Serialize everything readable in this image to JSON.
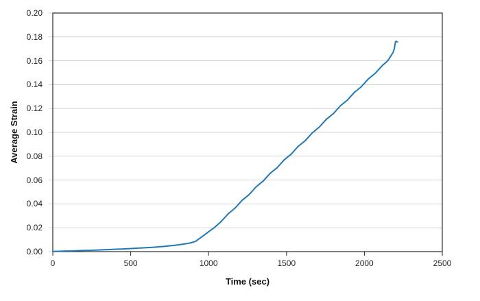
{
  "chart_data": {
    "type": "line",
    "title": "",
    "xlabel": "Time (sec)",
    "ylabel": "Average Strain",
    "xlim": [
      0,
      2500
    ],
    "ylim": [
      0,
      0.2
    ],
    "grid": "horizontal",
    "legend": "none",
    "x_ticks": [
      {
        "value": 0,
        "label": "0"
      },
      {
        "value": 500,
        "label": "500"
      },
      {
        "value": 1000,
        "label": "1000"
      },
      {
        "value": 1500,
        "label": "1500"
      },
      {
        "value": 2000,
        "label": "2000"
      },
      {
        "value": 2500,
        "label": "2500"
      }
    ],
    "y_ticks": [
      {
        "value": 0.0,
        "label": "0.00"
      },
      {
        "value": 0.02,
        "label": "0.02"
      },
      {
        "value": 0.04,
        "label": "0.04"
      },
      {
        "value": 0.06,
        "label": "0.06"
      },
      {
        "value": 0.08,
        "label": "0.08"
      },
      {
        "value": 0.1,
        "label": "0.10"
      },
      {
        "value": 0.12,
        "label": "0.12"
      },
      {
        "value": 0.14,
        "label": "0.14"
      },
      {
        "value": 0.16,
        "label": "0.16"
      },
      {
        "value": 0.18,
        "label": "0.18"
      },
      {
        "value": 0.2,
        "label": "0.20"
      }
    ],
    "series": [
      {
        "name": "Average Strain",
        "color": "#1F77B4",
        "points": [
          [
            0,
            0.0002
          ],
          [
            40,
            0.0003
          ],
          [
            80,
            0.0005
          ],
          [
            120,
            0.0006
          ],
          [
            160,
            0.0008
          ],
          [
            200,
            0.001
          ],
          [
            240,
            0.0011
          ],
          [
            280,
            0.0013
          ],
          [
            320,
            0.0015
          ],
          [
            360,
            0.0017
          ],
          [
            400,
            0.002
          ],
          [
            440,
            0.0022
          ],
          [
            480,
            0.0024
          ],
          [
            520,
            0.0027
          ],
          [
            560,
            0.003
          ],
          [
            600,
            0.0033
          ],
          [
            640,
            0.0036
          ],
          [
            680,
            0.004
          ],
          [
            720,
            0.0045
          ],
          [
            760,
            0.005
          ],
          [
            800,
            0.0056
          ],
          [
            840,
            0.0063
          ],
          [
            880,
            0.0072
          ],
          [
            915,
            0.0085
          ],
          [
            945,
            0.0113
          ],
          [
            975,
            0.0142
          ],
          [
            1005,
            0.0171
          ],
          [
            1035,
            0.02
          ],
          [
            1080,
            0.0252
          ],
          [
            1125,
            0.0316
          ],
          [
            1170,
            0.0365
          ],
          [
            1215,
            0.043
          ],
          [
            1260,
            0.0478
          ],
          [
            1305,
            0.0543
          ],
          [
            1350,
            0.0591
          ],
          [
            1395,
            0.0656
          ],
          [
            1440,
            0.0704
          ],
          [
            1485,
            0.0769
          ],
          [
            1530,
            0.0817
          ],
          [
            1575,
            0.0882
          ],
          [
            1620,
            0.093
          ],
          [
            1665,
            0.0995
          ],
          [
            1710,
            0.1043
          ],
          [
            1755,
            0.1108
          ],
          [
            1800,
            0.1156
          ],
          [
            1845,
            0.1221
          ],
          [
            1890,
            0.1269
          ],
          [
            1935,
            0.1334
          ],
          [
            1980,
            0.1382
          ],
          [
            2025,
            0.1447
          ],
          [
            2070,
            0.1495
          ],
          [
            2115,
            0.156
          ],
          [
            2150,
            0.16
          ],
          [
            2172,
            0.1645
          ],
          [
            2185,
            0.1672
          ],
          [
            2192,
            0.17
          ],
          [
            2196,
            0.173
          ],
          [
            2199,
            0.1758
          ],
          [
            2204,
            0.1763
          ],
          [
            2212,
            0.1757
          ]
        ]
      }
    ]
  },
  "colors": {
    "line": "#1F77B4",
    "gridline": "#D3D3D3",
    "axis": "#2B2B2B",
    "tick_text": "#1F1F1F",
    "background": "#FFFFFF"
  }
}
